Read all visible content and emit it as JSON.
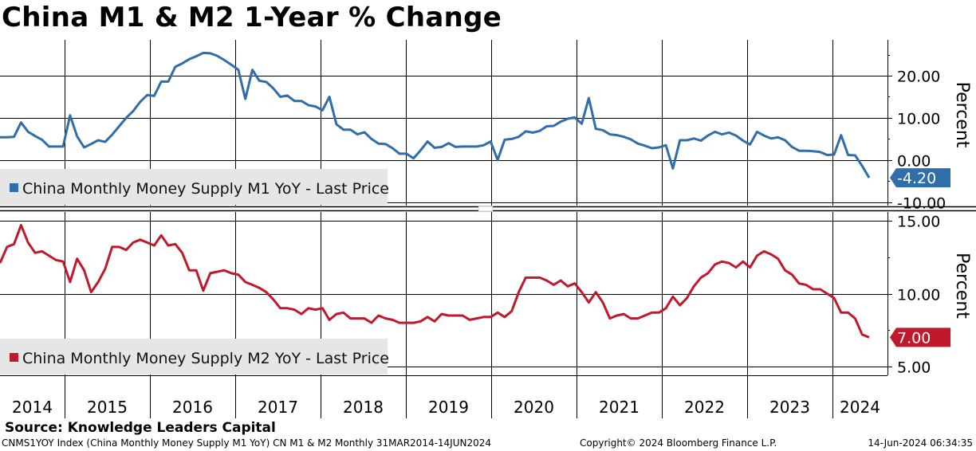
{
  "title": "China M1 & M2 1-Year % Change",
  "source": "Source: Knowledge Leaders Capital",
  "footer": {
    "left": "CNMS1YOY Index (China Monthly Money Supply M1 YoY) CN M1 & M2  Monthly 31MAR2014-14JUN2024",
    "middle": "Copyright© 2024 Bloomberg Finance L.P.",
    "right": "14-Jun-2024 06:34:35"
  },
  "colors": {
    "m1": "#2f6ea8",
    "m2": "#c0192b",
    "grid": "#000000"
  },
  "chart_data": [
    {
      "type": "line",
      "panel": "top",
      "series": [
        {
          "name": "China Monthly Money Supply M1 YoY - Last Price",
          "color": "#2f6ea8",
          "values": [
            5.4,
            5.4,
            5.5,
            8.9,
            6.7,
            5.7,
            4.8,
            3.2,
            3.2,
            3.2,
            10.6,
            5.6,
            3.0,
            3.8,
            4.7,
            4.3,
            6.0,
            8.0,
            10.0,
            11.6,
            13.8,
            15.4,
            15.2,
            18.6,
            18.6,
            22.1,
            22.9,
            23.9,
            24.6,
            25.4,
            25.3,
            24.7,
            23.7,
            22.6,
            21.4,
            14.5,
            21.4,
            18.8,
            18.5,
            17.0,
            15.0,
            15.3,
            14.0,
            14.0,
            13.0,
            12.7,
            11.8,
            15.0,
            8.5,
            7.2,
            7.2,
            6.1,
            6.6,
            5.0,
            3.9,
            3.8,
            2.8,
            1.5,
            1.5,
            0.4,
            2.3,
            4.4,
            2.9,
            3.1,
            4.0,
            3.1,
            3.2,
            3.2,
            3.2,
            3.5,
            4.4,
            0.0,
            4.8,
            5.0,
            5.5,
            6.8,
            6.5,
            6.9,
            8.0,
            8.1,
            9.1,
            9.8,
            10.1,
            8.6,
            14.7,
            7.4,
            7.1,
            6.1,
            5.9,
            5.5,
            4.9,
            3.9,
            3.4,
            2.8,
            3.0,
            3.5,
            -2.0,
            4.7,
            4.7,
            5.1,
            4.6,
            5.8,
            6.7,
            6.1,
            6.5,
            5.8,
            4.6,
            3.7,
            6.7,
            5.8,
            5.1,
            5.4,
            4.7,
            3.1,
            2.2,
            2.2,
            2.1,
            1.9,
            1.2,
            1.3,
            5.9,
            1.2,
            1.1,
            -1.4,
            -4.2
          ]
        }
      ],
      "ylim": [
        -10.8,
        28.5
      ],
      "yticks": [
        20.0,
        10.0,
        0.0,
        -10.0
      ],
      "ytick_labels": [
        "20.00",
        "10.00",
        "0.00",
        "-10.00"
      ],
      "ylabel": "Percent",
      "last_value": -4.2,
      "last_label": "-4.20"
    },
    {
      "type": "line",
      "panel": "bottom",
      "series": [
        {
          "name": "China Monthly Money Supply M2 YoY - Last Price",
          "color": "#c0192b",
          "values": [
            12.1,
            13.2,
            13.4,
            14.7,
            13.5,
            12.8,
            12.9,
            12.6,
            12.3,
            12.2,
            10.8,
            12.4,
            11.6,
            10.1,
            10.8,
            11.7,
            13.2,
            13.2,
            13.0,
            13.5,
            13.7,
            13.5,
            13.3,
            14.0,
            13.3,
            13.4,
            12.8,
            11.6,
            11.6,
            10.2,
            11.4,
            11.5,
            11.6,
            11.4,
            11.3,
            10.8,
            10.6,
            10.4,
            10.1,
            9.6,
            9.0,
            9.0,
            8.9,
            8.6,
            9.0,
            8.9,
            9.0,
            8.2,
            8.6,
            8.7,
            8.3,
            8.3,
            8.3,
            8.0,
            8.5,
            8.3,
            8.2,
            8.0,
            8.0,
            8.0,
            8.1,
            8.4,
            8.1,
            8.6,
            8.5,
            8.5,
            8.5,
            8.2,
            8.3,
            8.4,
            8.4,
            8.7,
            8.4,
            8.8,
            10.1,
            11.1,
            11.1,
            11.1,
            10.9,
            10.6,
            10.9,
            10.5,
            10.7,
            10.1,
            9.4,
            10.1,
            9.4,
            8.3,
            8.5,
            8.6,
            8.3,
            8.3,
            8.5,
            8.7,
            8.7,
            9.0,
            9.8,
            9.2,
            9.7,
            10.5,
            11.1,
            11.4,
            12.0,
            12.2,
            12.1,
            11.8,
            12.2,
            11.8,
            12.6,
            12.9,
            12.7,
            12.4,
            11.6,
            11.3,
            10.7,
            10.6,
            10.3,
            10.3,
            10.0,
            9.7,
            8.7,
            8.7,
            8.3,
            7.2,
            7.0
          ]
        }
      ],
      "ylim": [
        4.4,
        15.6
      ],
      "yticks": [
        15.0,
        10.0,
        5.0
      ],
      "ytick_labels": [
        "15.00",
        "10.00",
        "5.00"
      ],
      "ylabel": "Percent",
      "last_value": 7.0,
      "last_label": "7.00"
    }
  ],
  "x_axis": {
    "years": [
      "2014",
      "2015",
      "2016",
      "2017",
      "2018",
      "2019",
      "2020",
      "2021",
      "2022",
      "2023",
      "2024"
    ],
    "start": "2014-03",
    "end": "2024-05"
  }
}
